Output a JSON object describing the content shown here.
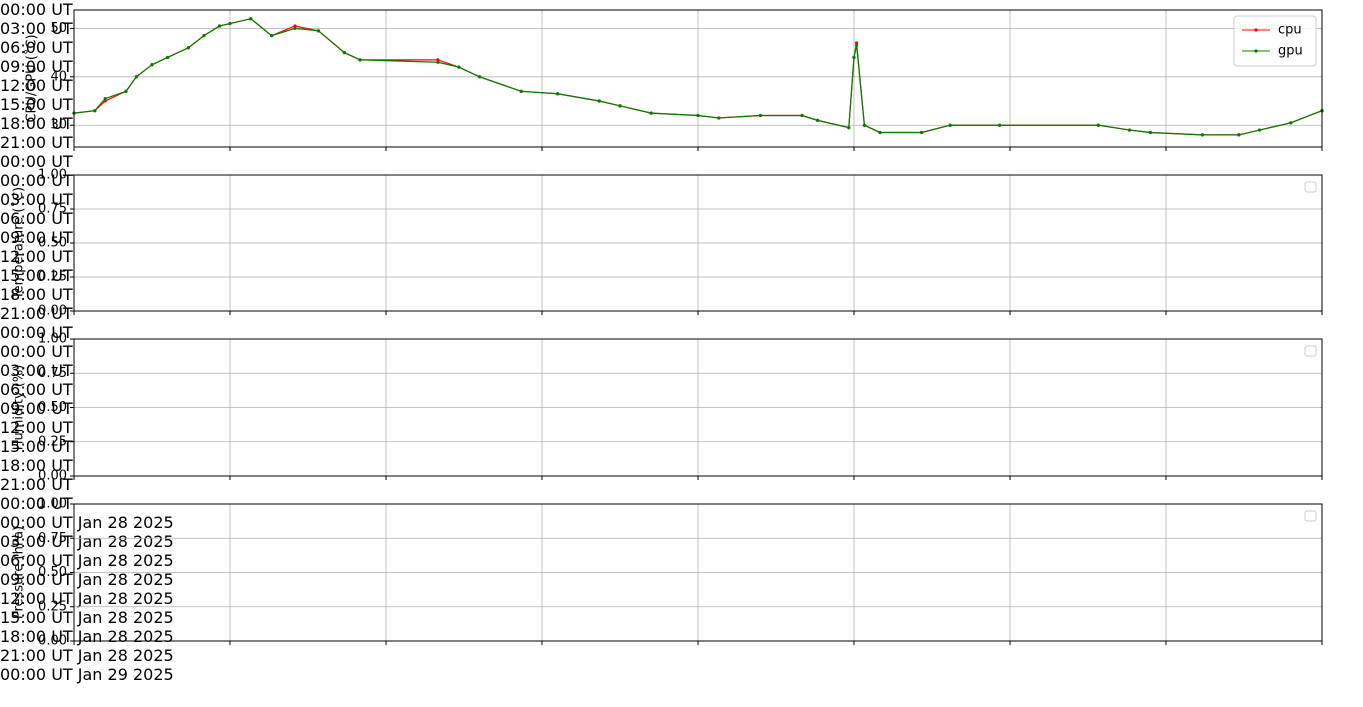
{
  "chart_data": [
    {
      "type": "line",
      "ylabel": "CPU/GPU (˚C)",
      "x": [
        0,
        0.4,
        0.6,
        1,
        1.2,
        1.5,
        1.8,
        2.2,
        2.5,
        2.8,
        3,
        3.4,
        3.8,
        4.25,
        4.7,
        5.2,
        5.5,
        7,
        7.4,
        7.8,
        8.6,
        9.3,
        10.1,
        10.5,
        11.1,
        12,
        12.4,
        13.2,
        14,
        14.3,
        14.9,
        15,
        15.05,
        15.2,
        15.5,
        16.3,
        16.85,
        17.8,
        19.7,
        20.3,
        20.7,
        21.7,
        22.4,
        22.8,
        23.4,
        24
      ],
      "series": [
        {
          "name": "cpu",
          "color": "#ff0000",
          "values": [
            32.5,
            33,
            35,
            37,
            40,
            42.5,
            44,
            46,
            48.5,
            50.5,
            51,
            52,
            48.5,
            50.5,
            49.5,
            45,
            43.5,
            43.5,
            42,
            40,
            37,
            36.5,
            35,
            34,
            32.5,
            32,
            31.5,
            32,
            32,
            31,
            29.5,
            44,
            47,
            30,
            28.5,
            28.5,
            30,
            30,
            30,
            29,
            28.5,
            28,
            28,
            29,
            30.5,
            33
          ]
        },
        {
          "name": "gpu",
          "color": "#008000",
          "values": [
            32.5,
            33,
            35.5,
            37,
            40,
            42.5,
            44,
            46,
            48.5,
            50.5,
            51,
            52,
            48.5,
            50,
            49.5,
            45,
            43.5,
            43,
            42,
            40,
            37,
            36.5,
            35,
            34,
            32.5,
            32,
            31.5,
            32,
            32,
            31,
            29.5,
            44,
            46.5,
            30,
            28.5,
            28.5,
            30,
            30,
            30,
            29,
            28.5,
            28,
            28,
            29,
            30.5,
            33
          ]
        }
      ],
      "xlim": [
        0,
        24
      ],
      "xticks": [
        {
          "value": 0,
          "label": "00:00 UT"
        },
        {
          "value": 3,
          "label": "03:00 UT"
        },
        {
          "value": 6,
          "label": "06:00 UT"
        },
        {
          "value": 9,
          "label": "09:00 UT"
        },
        {
          "value": 12,
          "label": "12:00 UT"
        },
        {
          "value": 15,
          "label": "15:00 UT"
        },
        {
          "value": 18,
          "label": "18:00 UT"
        },
        {
          "value": 21,
          "label": "21:00 UT"
        },
        {
          "value": 24,
          "label": "00:00 UT"
        }
      ],
      "ylim": [
        25.5,
        53.8
      ],
      "yticks": [
        30,
        40,
        50
      ],
      "grid": true,
      "legend": "upper right"
    },
    {
      "type": "line",
      "ylabel": "Temperature (˚C)",
      "series": [],
      "xlim": [
        0,
        24
      ],
      "xticks": [
        {
          "value": 0,
          "label": "00:00 UT"
        },
        {
          "value": 3,
          "label": "03:00 UT"
        },
        {
          "value": 6,
          "label": "06:00 UT"
        },
        {
          "value": 9,
          "label": "09:00 UT"
        },
        {
          "value": 12,
          "label": "12:00 UT"
        },
        {
          "value": 15,
          "label": "15:00 UT"
        },
        {
          "value": 18,
          "label": "18:00 UT"
        },
        {
          "value": 21,
          "label": "21:00 UT"
        },
        {
          "value": 24,
          "label": "00:00 UT"
        }
      ],
      "ylim": [
        0,
        1
      ],
      "yticks": [
        {
          "value": 0,
          "label": "0.00"
        },
        {
          "value": 0.25,
          "label": "0.25"
        },
        {
          "value": 0.5,
          "label": "0.50"
        },
        {
          "value": 0.75,
          "label": "0.75"
        },
        {
          "value": 1,
          "label": "1.00"
        }
      ],
      "grid": true,
      "legend": "upper right"
    },
    {
      "type": "line",
      "ylabel": "Humidity (%)",
      "series": [],
      "xlim": [
        0,
        24
      ],
      "xticks": [
        {
          "value": 0,
          "label": "00:00 UT"
        },
        {
          "value": 3,
          "label": "03:00 UT"
        },
        {
          "value": 6,
          "label": "06:00 UT"
        },
        {
          "value": 9,
          "label": "09:00 UT"
        },
        {
          "value": 12,
          "label": "12:00 UT"
        },
        {
          "value": 15,
          "label": "15:00 UT"
        },
        {
          "value": 18,
          "label": "18:00 UT"
        },
        {
          "value": 21,
          "label": "21:00 UT"
        },
        {
          "value": 24,
          "label": "00:00 UT"
        }
      ],
      "ylim": [
        0,
        1
      ],
      "yticks": [
        {
          "value": 0,
          "label": "0.00"
        },
        {
          "value": 0.25,
          "label": "0.25"
        },
        {
          "value": 0.5,
          "label": "0.50"
        },
        {
          "value": 0.75,
          "label": "0.75"
        },
        {
          "value": 1,
          "label": "1.00"
        }
      ],
      "grid": true,
      "legend": "upper right"
    },
    {
      "type": "line",
      "ylabel": "Pressure (hPa)",
      "series": [],
      "xlim": [
        0,
        24
      ],
      "xticks": [
        {
          "value": 0,
          "label": "00:00 UT\nJan 28\n2025"
        },
        {
          "value": 3,
          "label": "03:00 UT\nJan 28\n2025"
        },
        {
          "value": 6,
          "label": "06:00 UT\nJan 28\n2025"
        },
        {
          "value": 9,
          "label": "09:00 UT\nJan 28\n2025"
        },
        {
          "value": 12,
          "label": "12:00 UT\nJan 28\n2025"
        },
        {
          "value": 15,
          "label": "15:00 UT\nJan 28\n2025"
        },
        {
          "value": 18,
          "label": "18:00 UT\nJan 28\n2025"
        },
        {
          "value": 21,
          "label": "21:00 UT\nJan 28\n2025"
        },
        {
          "value": 24,
          "label": "00:00 UT\nJan 29\n2025"
        }
      ],
      "ylim": [
        0,
        1
      ],
      "yticks": [
        {
          "value": 0,
          "label": "0.00"
        },
        {
          "value": 0.25,
          "label": "0.25"
        },
        {
          "value": 0.5,
          "label": "0.50"
        },
        {
          "value": 0.75,
          "label": "0.75"
        },
        {
          "value": 1,
          "label": "1.00"
        }
      ],
      "grid": true,
      "legend": "upper right"
    }
  ]
}
